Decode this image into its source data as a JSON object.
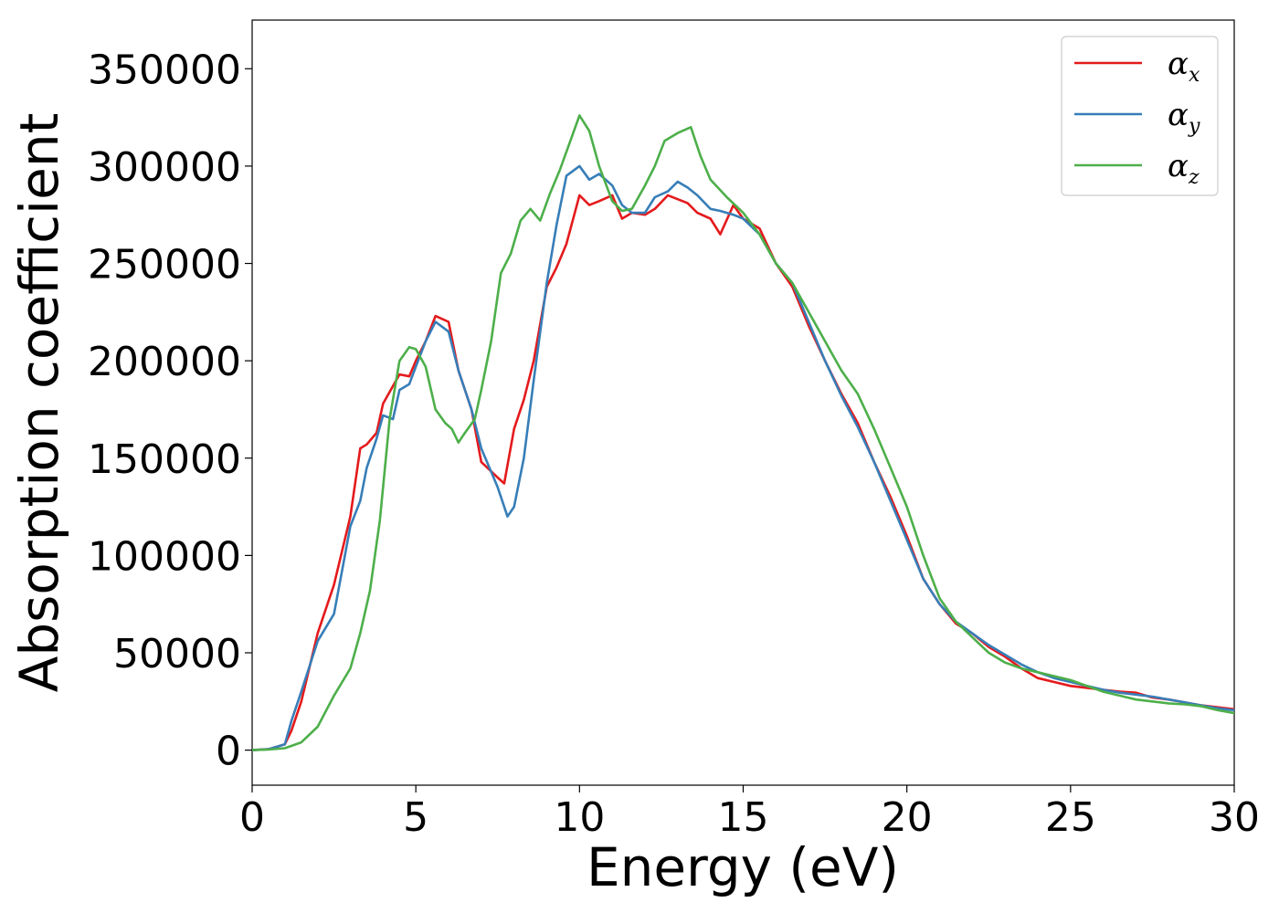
{
  "chart_data": {
    "type": "line",
    "xlabel": "Energy (eV)",
    "ylabel": "Absorption coefficient",
    "xlim": [
      0,
      30
    ],
    "ylim": [
      -18000,
      375000
    ],
    "xticks": [
      0,
      5,
      10,
      15,
      20,
      25,
      30
    ],
    "xtick_labels": [
      "0",
      "5",
      "10",
      "15",
      "20",
      "25",
      "30"
    ],
    "yticks": [
      0,
      50000,
      100000,
      150000,
      200000,
      250000,
      300000,
      350000
    ],
    "ytick_labels": [
      "0",
      "50000",
      "100000",
      "150000",
      "200000",
      "250000",
      "300000",
      "350000"
    ],
    "grid": false,
    "legend": "top-right",
    "series": [
      {
        "name": "α",
        "subscript": "x",
        "color": "#e41a1c",
        "x": [
          0,
          0.5,
          1.0,
          1.2,
          1.5,
          2.0,
          2.5,
          3.0,
          3.3,
          3.5,
          3.8,
          4.0,
          4.3,
          4.5,
          4.8,
          5.0,
          5.3,
          5.6,
          6.0,
          6.3,
          6.7,
          7.0,
          7.5,
          7.7,
          8.0,
          8.3,
          8.6,
          9.0,
          9.3,
          9.6,
          10.0,
          10.3,
          10.6,
          11.0,
          11.3,
          11.6,
          12.0,
          12.3,
          12.7,
          13.0,
          13.3,
          13.6,
          14.0,
          14.3,
          14.7,
          15.0,
          15.5,
          16.0,
          16.5,
          17.0,
          17.5,
          18.0,
          18.5,
          19.0,
          19.5,
          20.0,
          20.5,
          21.0,
          21.5,
          22.0,
          22.5,
          23.0,
          23.5,
          24.0,
          24.5,
          25.0,
          25.5,
          26.0,
          26.5,
          27.0,
          27.5,
          28.0,
          28.5,
          29.0,
          29.5,
          30.0
        ],
        "values": [
          0,
          500,
          3000,
          10000,
          25000,
          60000,
          85000,
          120000,
          155000,
          157000,
          163000,
          178000,
          187000,
          193000,
          192000,
          200000,
          210000,
          223000,
          220000,
          195000,
          175000,
          148000,
          140000,
          137000,
          165000,
          180000,
          200000,
          238000,
          248000,
          260000,
          285000,
          280000,
          282000,
          285000,
          273000,
          276000,
          275000,
          278000,
          285000,
          283000,
          281000,
          276000,
          273000,
          265000,
          280000,
          273000,
          268000,
          250000,
          238000,
          218000,
          200000,
          183000,
          168000,
          148000,
          130000,
          110000,
          88000,
          75000,
          65000,
          60000,
          53000,
          48000,
          42000,
          37000,
          35000,
          33000,
          32000,
          31000,
          30000,
          29500,
          27000,
          26000,
          24500,
          23000,
          22000,
          21000
        ]
      },
      {
        "name": "α",
        "subscript": "y",
        "color": "#377eb8",
        "x": [
          0,
          0.5,
          1.0,
          1.2,
          1.5,
          2.0,
          2.5,
          3.0,
          3.3,
          3.5,
          3.8,
          4.0,
          4.3,
          4.5,
          4.8,
          5.0,
          5.3,
          5.6,
          6.0,
          6.3,
          6.7,
          7.0,
          7.5,
          7.8,
          8.0,
          8.3,
          8.6,
          9.0,
          9.3,
          9.6,
          10.0,
          10.3,
          10.6,
          11.0,
          11.3,
          11.6,
          12.0,
          12.3,
          12.7,
          13.0,
          13.3,
          13.6,
          14.0,
          14.3,
          14.7,
          15.0,
          15.5,
          16.0,
          16.5,
          17.0,
          17.5,
          18.0,
          18.5,
          19.0,
          19.5,
          20.0,
          20.5,
          21.0,
          21.5,
          22.0,
          22.5,
          23.0,
          23.5,
          24.0,
          24.5,
          25.0,
          25.5,
          26.0,
          26.5,
          27.0,
          27.5,
          28.0,
          28.5,
          29.0,
          29.5,
          30.0
        ],
        "values": [
          0,
          500,
          3000,
          15000,
          30000,
          56000,
          70000,
          115000,
          128000,
          145000,
          160000,
          172000,
          170000,
          185000,
          188000,
          197000,
          210000,
          220000,
          215000,
          195000,
          175000,
          155000,
          135000,
          120000,
          125000,
          150000,
          190000,
          240000,
          270000,
          295000,
          300000,
          293000,
          296000,
          290000,
          280000,
          276000,
          276000,
          284000,
          287000,
          292000,
          289000,
          285000,
          278000,
          277000,
          275000,
          273000,
          265000,
          250000,
          240000,
          220000,
          200000,
          182000,
          166000,
          148000,
          128000,
          108000,
          88000,
          75000,
          66000,
          60000,
          54000,
          49000,
          44000,
          40000,
          37000,
          35000,
          33000,
          31000,
          29500,
          28500,
          27500,
          26000,
          24500,
          23000,
          21500,
          20500
        ]
      },
      {
        "name": "α",
        "subscript": "z",
        "color": "#4daf4a",
        "x": [
          0,
          0.5,
          1.0,
          1.5,
          2.0,
          2.5,
          3.0,
          3.3,
          3.6,
          3.9,
          4.2,
          4.5,
          4.8,
          5.0,
          5.3,
          5.6,
          5.9,
          6.1,
          6.3,
          6.5,
          6.8,
          7.0,
          7.3,
          7.6,
          7.9,
          8.2,
          8.5,
          8.8,
          9.1,
          9.4,
          9.7,
          10.0,
          10.3,
          10.6,
          11.0,
          11.3,
          11.6,
          12.0,
          12.3,
          12.6,
          13.0,
          13.4,
          13.7,
          14.0,
          14.5,
          15.0,
          15.5,
          16.0,
          16.5,
          17.0,
          17.5,
          18.0,
          18.5,
          19.0,
          19.5,
          20.0,
          20.5,
          21.0,
          21.5,
          22.0,
          22.5,
          23.0,
          23.5,
          24.0,
          24.5,
          25.0,
          25.5,
          26.0,
          26.5,
          27.0,
          27.5,
          28.0,
          28.5,
          29.0,
          29.5,
          30.0
        ],
        "values": [
          0,
          300,
          1000,
          4000,
          12000,
          28000,
          42000,
          60000,
          82000,
          118000,
          170000,
          200000,
          207000,
          206000,
          197000,
          175000,
          168000,
          165000,
          158000,
          163000,
          170000,
          185000,
          210000,
          245000,
          255000,
          272000,
          278000,
          272000,
          286000,
          298000,
          312000,
          326000,
          318000,
          300000,
          282000,
          277000,
          278000,
          290000,
          300000,
          313000,
          317000,
          320000,
          305000,
          293000,
          284000,
          276000,
          265000,
          250000,
          240000,
          225000,
          210000,
          195000,
          183000,
          165000,
          145000,
          125000,
          100000,
          78000,
          66000,
          58000,
          50000,
          45000,
          42000,
          40000,
          38000,
          36000,
          33000,
          30000,
          28000,
          26000,
          25000,
          24000,
          23500,
          22500,
          20500,
          19000
        ]
      }
    ]
  }
}
